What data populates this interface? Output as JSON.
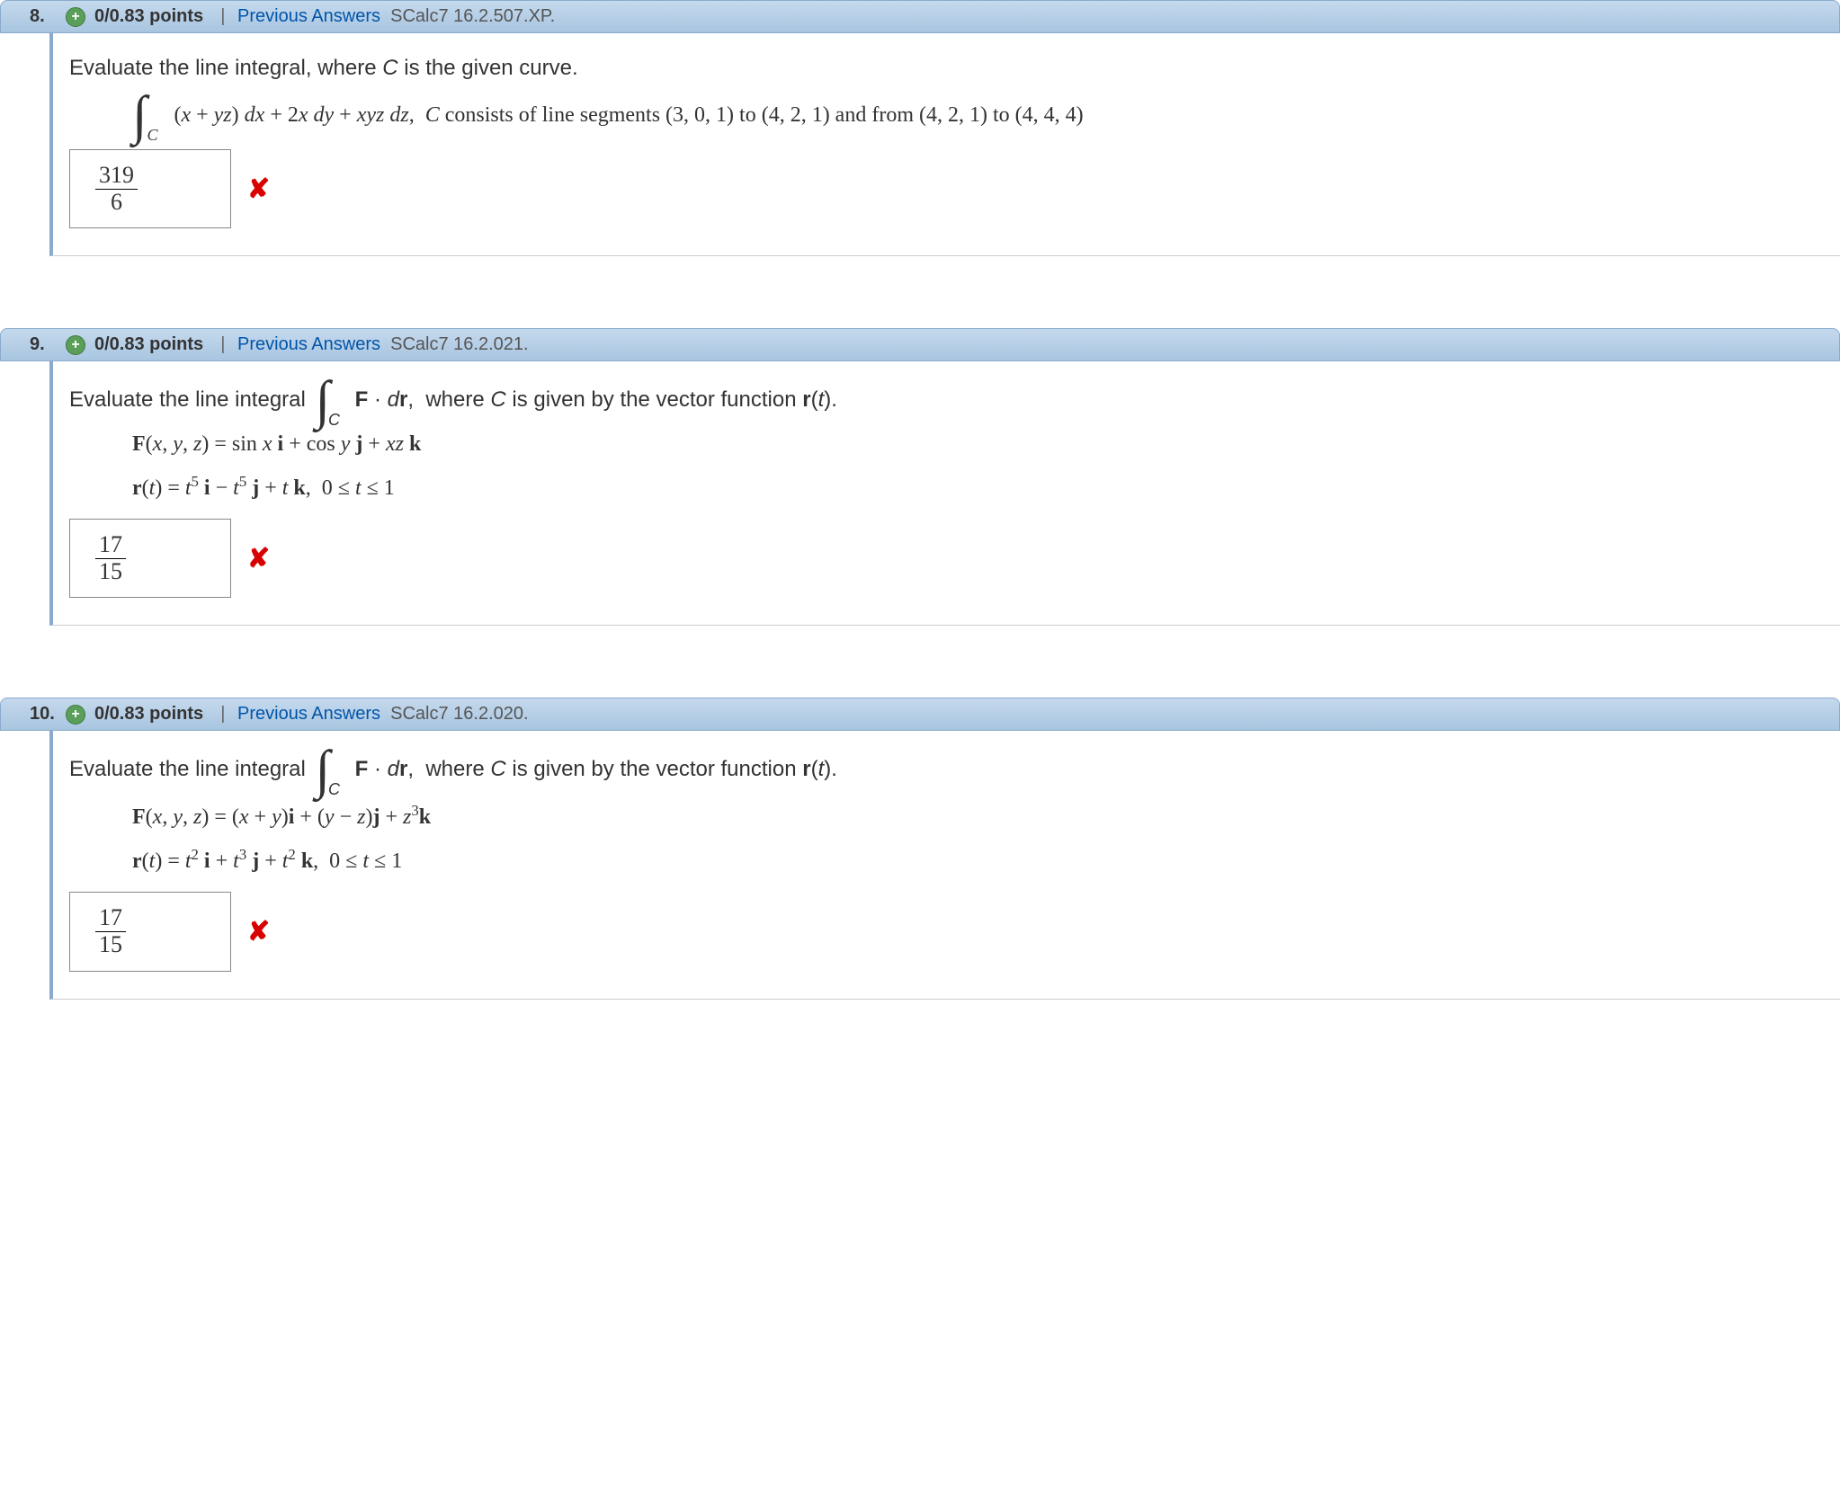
{
  "questions": [
    {
      "number": "8.",
      "points": "0/0.83 points",
      "prev_label": "Previous Answers",
      "source": "SCalc7 16.2.507.XP.",
      "prompt_intro": "Evaluate the line integral, where C is the given curve.",
      "integrand": "(x + yz) dx + 2x dy + xyz dz,",
      "curve_desc": " C consists of line segments (3, 0, 1) to (4, 2, 1) and from (4, 2, 1) to (4, 4, 4)",
      "answer_num": "319",
      "answer_den": "6"
    },
    {
      "number": "9.",
      "points": "0/0.83 points",
      "prev_label": "Previous Answers",
      "source": "SCalc7 16.2.021.",
      "prompt_pre": "Evaluate the line integral ",
      "prompt_mid": "F · dr,",
      "prompt_post": " where C is given by the vector function r(t).",
      "F_lhs": "F(x, y, z) = ",
      "F_rhs_plain": "sin x i + cos y j + xz k",
      "r_lhs": "r(t) = ",
      "r_rhs": "t",
      "r_full_desc": "t^5 i − t^5 j + t k, 0 ≤ t ≤ 1",
      "answer_num": "17",
      "answer_den": "15"
    },
    {
      "number": "10.",
      "points": "0/0.83 points",
      "prev_label": "Previous Answers",
      "source": "SCalc7 16.2.020.",
      "prompt_pre": "Evaluate the line integral ",
      "prompt_mid": "F · dr,",
      "prompt_post": " where C is given by the vector function r(t).",
      "F_lhs": "F(x, y, z) = ",
      "F_rhs_plain": "(x + y)i + (y − z)j + z^3 k",
      "r_lhs": "r(t) = ",
      "r_full_desc": "t^2 i + t^3 j + t^2 k, 0 ≤ t ≤ 1",
      "answer_num": "17",
      "answer_den": "15"
    }
  ],
  "integral_subscript": "C",
  "colors": {
    "header_grad_top": "#c5d9ed",
    "header_grad_bottom": "#a8c5e0",
    "header_border": "#8aabce",
    "link_color": "#0055aa",
    "wrong_color": "#d80000",
    "expand_bg": "#5a9e5a"
  }
}
